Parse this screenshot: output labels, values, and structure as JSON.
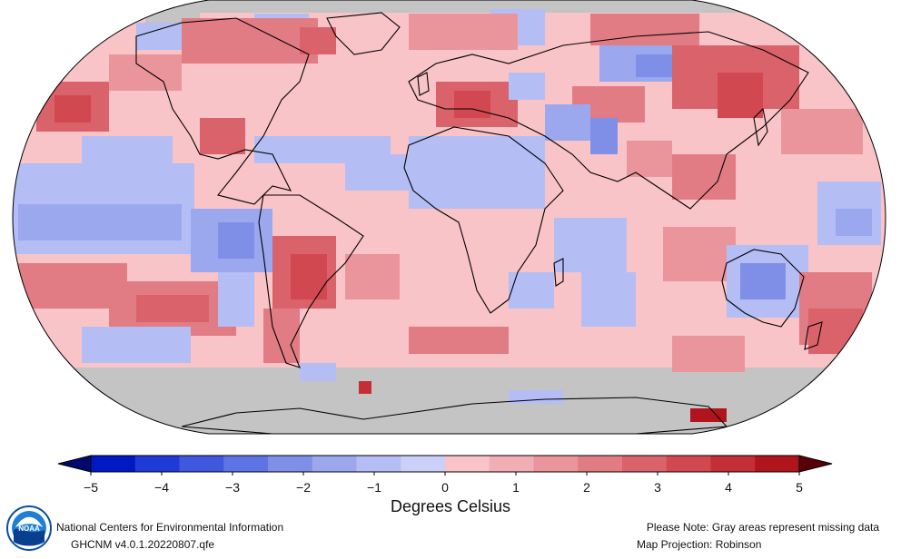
{
  "map": {
    "projection_note": "Map Projection: Robinson",
    "missing_note": "Please Note: Gray areas represent missing data",
    "colors": {
      "missing": "#c4c4c4",
      "coast": "#000000",
      "scale": [
        "#0018c4",
        "#1f3ad6",
        "#3f58de",
        "#5f74e4",
        "#7f8fe8",
        "#9ba8ee",
        "#b4bef4",
        "#cad0f8",
        "#f8c4c8",
        "#f1aeb4",
        "#ea959c",
        "#e27c84",
        "#da626b",
        "#d24850",
        "#c42e36",
        "#b0141c"
      ]
    },
    "cells": {
      "note": ""
    }
  },
  "colorbar": {
    "ticks": [
      "−5",
      "−4",
      "−3",
      "−2",
      "−1",
      "0",
      "1",
      "2",
      "3",
      "4",
      "5"
    ],
    "title": "Degrees Celsius",
    "under_color": "#000a6a",
    "over_color": "#5a0008"
  },
  "footer": {
    "org": "National Centers for Environmental Information",
    "version": "GHCNM v4.0.1.20220807.qfe",
    "logo_text": "NOAA"
  }
}
